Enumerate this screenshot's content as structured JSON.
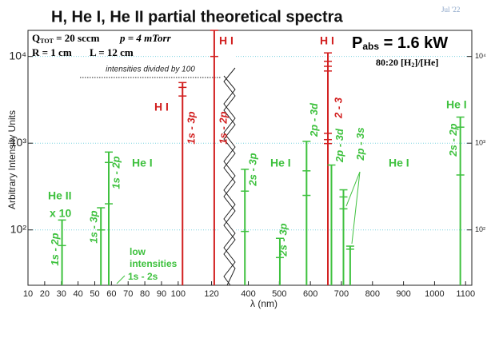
{
  "chart_data": {
    "type": "spectrum",
    "title": "H, He I, He II partial theoretical spectra",
    "date": "Jul '22",
    "ylabel": "Arbitrary Intensity Units",
    "xlabel": "λ (nm)",
    "log_scale": true,
    "grid": true,
    "ylim": [
      23,
      20000
    ],
    "yticks": [
      {
        "value": 100,
        "label": "10²"
      },
      {
        "value": 1000,
        "label": "10³"
      },
      {
        "value": 10000,
        "label": "10⁴"
      }
    ],
    "xlim": [
      10,
      125
    ],
    "xticks": [
      10,
      20,
      30,
      40,
      50,
      60,
      70,
      80,
      90,
      100,
      120
    ],
    "x2lim": [
      360,
      1120
    ],
    "x2ticks": [
      400,
      500,
      600,
      700,
      800,
      900,
      1000,
      1100
    ],
    "conditions": [
      "Q",
      "TOT",
      " = 20 sccm",
      "p = 4 mTorr",
      "R = 1 cm",
      "L = 12 cm"
    ],
    "power": [
      "P",
      "abs",
      " = 1.6 kW"
    ],
    "mixture": [
      "80:20 [H",
      "2",
      "]/[He]"
    ],
    "annotations": [
      "intensities divided by 100",
      "H I",
      "H I",
      "H I",
      "He II",
      "x 10",
      "He I",
      "He I",
      "He I",
      "He I",
      "low",
      "intensities",
      "1s - 2s"
    ],
    "lines": [
      {
        "x": 30.4,
        "axis": "x",
        "color": "#3ec13e",
        "label": "1s - 2p",
        "values": [
          130,
          66
        ]
      },
      {
        "x": 53.7,
        "axis": "x",
        "color": "#3ec13e",
        "label": "1s - 3p",
        "values": [
          180,
          100
        ]
      },
      {
        "x": 58.4,
        "axis": "x",
        "color": "#3ec13e",
        "label": "1s - 2p",
        "values": [
          790,
          600,
          200
        ]
      },
      {
        "x": 102.6,
        "axis": "x",
        "color": "#d21f1f",
        "label": "1s - 3p",
        "values": [
          5000,
          4400,
          3500
        ]
      },
      {
        "x": 121.6,
        "axis": "x",
        "color": "#d21f1f",
        "label": "1s - 2p",
        "values": [
          20000,
          10000
        ]
      },
      {
        "x": 388.9,
        "axis": "x2",
        "color": "#3ec13e",
        "label": "2s - 3p",
        "values": [
          500,
          280,
          96
        ]
      },
      {
        "x": 501.6,
        "axis": "x2",
        "color": "#3ec13e",
        "label": "2s - 3p",
        "values": [
          80,
          48
        ]
      },
      {
        "x": 587.6,
        "axis": "x2",
        "color": "#3ec13e",
        "label": "2p - 3d",
        "values": [
          1050,
          480,
          250
        ]
      },
      {
        "x": 656.3,
        "axis": "x2",
        "color": "#d21f1f",
        "label": "2 - 3",
        "values": [
          11000,
          8800,
          7700,
          6800,
          1300,
          1100,
          990
        ]
      },
      {
        "x": 667.8,
        "axis": "x2",
        "color": "#3ec13e",
        "label": "2p - 3d",
        "values": [
          560
        ]
      },
      {
        "x": 706.5,
        "axis": "x2",
        "color": "#3ec13e",
        "label": "2p - 3s",
        "values": [
          290,
          240,
          175
        ]
      },
      {
        "x": 728.1,
        "axis": "x2",
        "color": "#3ec13e",
        "label": null,
        "values": [
          65,
          60
        ]
      },
      {
        "x": 1083,
        "axis": "x2",
        "color": "#3ec13e",
        "label": "2s - 2p",
        "values": [
          2000,
          1530,
          430
        ]
      }
    ]
  }
}
